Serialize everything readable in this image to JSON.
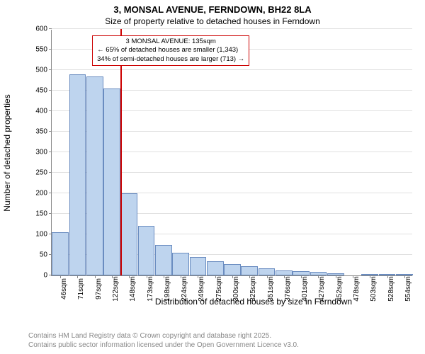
{
  "title1": "3, MONSAL AVENUE, FERNDOWN, BH22 8LA",
  "title2": "Size of property relative to detached houses in Ferndown",
  "ylabel": "Number of detached properties",
  "xlabel": "Distribution of detached houses by size in Ferndown",
  "chart": {
    "type": "histogram",
    "background_color": "#ffffff",
    "grid_color": "#e0e0e0",
    "axis_color": "#888888",
    "bar_fill": "#bed4ee",
    "bar_border": "#6a8cc0",
    "marker_color": "#cc0000",
    "annotation_border": "#cc0000",
    "ylim": [
      0,
      600
    ],
    "ytick_step": 50,
    "yticks": [
      0,
      50,
      100,
      150,
      200,
      250,
      300,
      350,
      400,
      450,
      500,
      550,
      600
    ],
    "xticks": [
      "46sqm",
      "71sqm",
      "97sqm",
      "122sqm",
      "148sqm",
      "173sqm",
      "198sqm",
      "224sqm",
      "249sqm",
      "275sqm",
      "300sqm",
      "325sqm",
      "351sqm",
      "376sqm",
      "401sqm",
      "427sqm",
      "452sqm",
      "478sqm",
      "503sqm",
      "528sqm",
      "554sqm"
    ],
    "categories_count": 21,
    "values": [
      105,
      490,
      485,
      455,
      200,
      120,
      75,
      55,
      45,
      35,
      28,
      22,
      18,
      12,
      10,
      8,
      5,
      0,
      4,
      3,
      2
    ],
    "bar_width_ratio": 0.98,
    "marker_x_index": 3.5,
    "title_fontsize": 13,
    "subtitle_fontsize": 12,
    "label_fontsize": 12,
    "tick_fontsize": 10,
    "annotation_fontsize": 9.5
  },
  "annotation": {
    "line1": "3 MONSAL AVENUE: 135sqm",
    "line2": "← 65% of detached houses are smaller (1,343)",
    "line3": "34% of semi-detached houses are larger (713) →"
  },
  "footer": {
    "line1": "Contains HM Land Registry data © Crown copyright and database right 2025.",
    "line2": "Contains public sector information licensed under the Open Government Licence v3.0."
  }
}
